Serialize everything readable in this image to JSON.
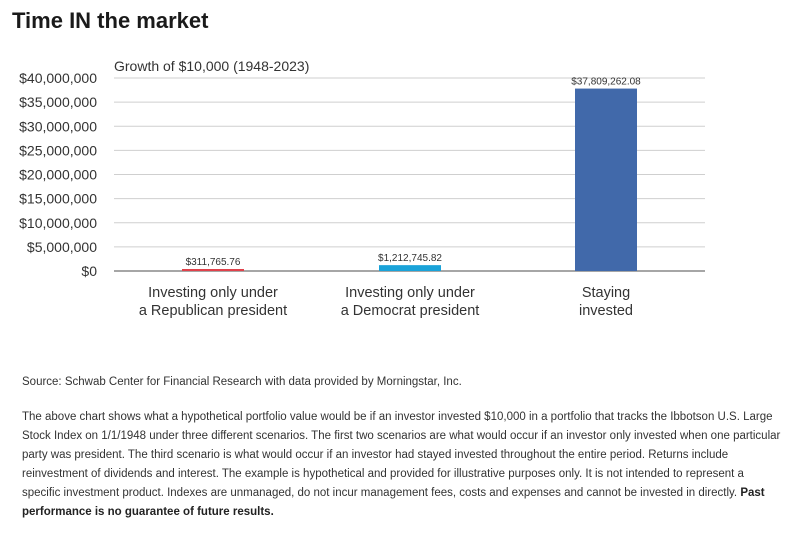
{
  "header": {
    "title": "Time IN the market"
  },
  "chart_data": {
    "type": "bar",
    "title": "Growth of $10,000 (1948-2023)",
    "xlabel": "",
    "ylabel": "",
    "ylim": [
      0,
      40000000
    ],
    "yticks": [
      0,
      5000000,
      10000000,
      15000000,
      20000000,
      25000000,
      30000000,
      35000000,
      40000000
    ],
    "ytick_labels": [
      "$0",
      "$5,000,000",
      "$10,000,000",
      "$15,000,000",
      "$20,000,000",
      "$25,000,000",
      "$30,000,000",
      "$35,000,000",
      "$40,000,000"
    ],
    "grid": true,
    "categories": [
      [
        "Investing only under",
        "a Republican president"
      ],
      [
        "Investing only under",
        "a Democrat president"
      ],
      [
        "Staying",
        "invested"
      ]
    ],
    "values": [
      311765.76,
      1212745.82,
      37809262.08
    ],
    "value_labels": [
      "$311,765.76",
      "$1,212,745.82",
      "$37,809,262.08"
    ],
    "colors": [
      "#e0424b",
      "#1aa3d9",
      "#4169aa"
    ]
  },
  "footer": {
    "source": "Source: Schwab Center for Financial Research with data provided by Morningstar, Inc.",
    "note": "The above chart shows what a hypothetical portfolio value would be if an investor invested $10,000 in a portfolio that tracks the Ibbotson U.S. Large Stock Index on 1/1/1948 under three different scenarios. The first two scenarios are what would occur if an investor only invested when one particular party was president. The third scenario is what would occur if an investor had stayed invested throughout the entire period. Returns include reinvestment of dividends and interest. The example is hypothetical and provided for illustrative purposes only. It is not intended to represent a specific investment product. Indexes are unmanaged, do not incur management fees, costs and expenses and cannot be invested in directly.",
    "disclaimer": "Past performance is no guarantee of future results."
  }
}
